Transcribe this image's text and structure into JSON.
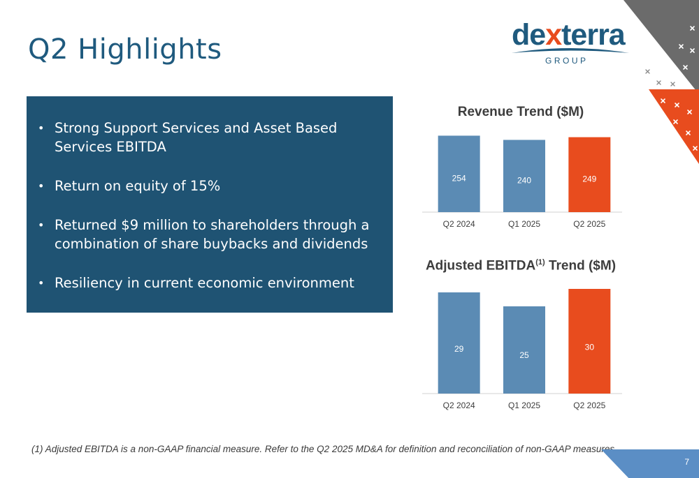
{
  "slide": {
    "title": "Q2 Highlights",
    "footnote": "(1) Adjusted EBITDA is a non-GAAP financial measure. Refer to the Q2 2025 MD&A for definition and reconciliation of non-GAAP measures.",
    "page_number": "7"
  },
  "logo": {
    "wordmark_left": "de",
    "wordmark_x": "x",
    "wordmark_right": "terra",
    "sub": "GROUP",
    "colors": {
      "primary": "#1f5a7e",
      "accent": "#e84c1e"
    }
  },
  "highlights": [
    "Strong Support Services and Asset Based Services EBITDA",
    "Return on equity of 15%",
    "Returned $9 million to shareholders through a combination of share buybacks and dividends",
    "Resiliency in current economic environment"
  ],
  "colors": {
    "panel": "#1f5373",
    "bar_prior": "#5b8bb4",
    "bar_current": "#e84c1e",
    "grey_stripe": "#6b6b6b"
  },
  "chart_data": [
    {
      "type": "bar",
      "title": "Revenue Trend ($M)",
      "title_sup": "",
      "title_suffix": "",
      "categories": [
        "Q2 2024",
        "Q1 2025",
        "Q2 2025"
      ],
      "values": [
        254,
        240,
        249
      ],
      "value_labels": [
        "254",
        "240",
        "249"
      ],
      "ylim": [
        0,
        255
      ],
      "highlight_index": 2
    },
    {
      "type": "bar",
      "title": "Adjusted EBITDA",
      "title_sup": "(1)",
      "title_suffix": " Trend ($M)",
      "categories": [
        "Q2 2024",
        "Q1 2025",
        "Q2 2025"
      ],
      "values": [
        29,
        25,
        30
      ],
      "value_labels": [
        "29",
        "25",
        "30"
      ],
      "ylim": [
        0,
        30
      ],
      "highlight_index": 2
    }
  ]
}
